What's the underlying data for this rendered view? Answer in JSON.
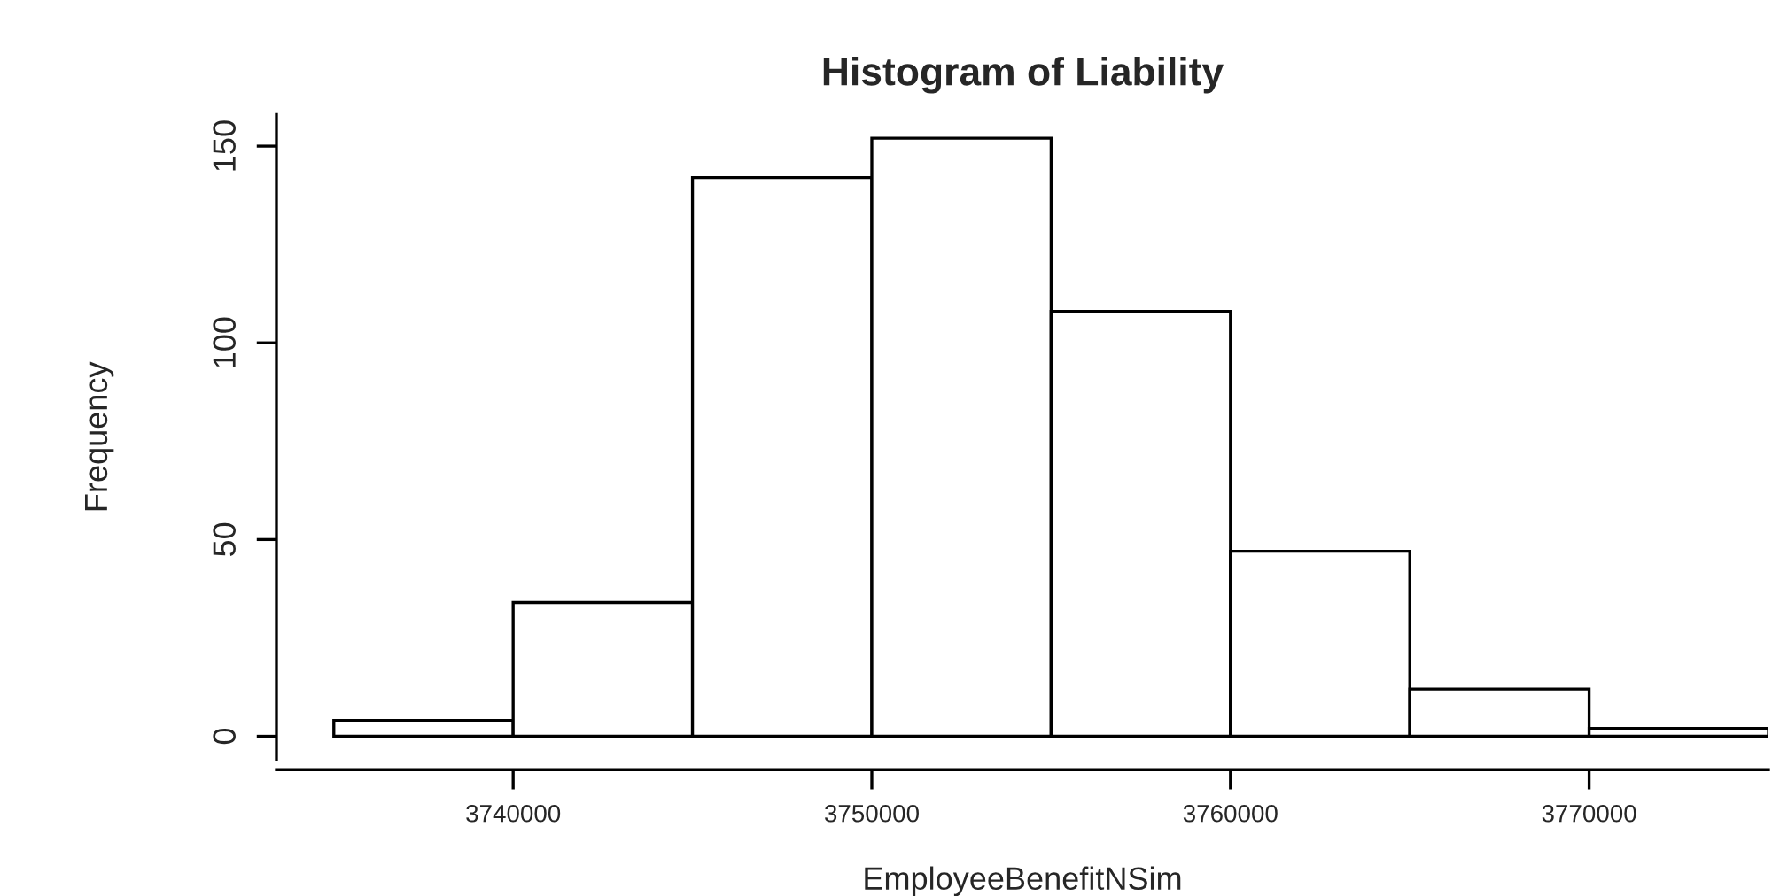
{
  "chart_data": {
    "type": "histogram",
    "title": "Histogram of Liability",
    "xlabel": "EmployeeBenefitNSim",
    "ylabel": "Frequency",
    "bins": [
      3735000,
      3740000,
      3745000,
      3750000,
      3755000,
      3760000,
      3765000,
      3770000,
      3775000
    ],
    "values": [
      4,
      34,
      142,
      152,
      108,
      47,
      12,
      2
    ],
    "color": "#ffffff",
    "xlim": [
      3733400,
      3775000
    ],
    "ylim": [
      -6,
      158
    ],
    "xticks": [
      3740000,
      3750000,
      3760000,
      3770000
    ],
    "yticks": [
      0,
      50,
      100,
      150
    ],
    "grid": false
  }
}
